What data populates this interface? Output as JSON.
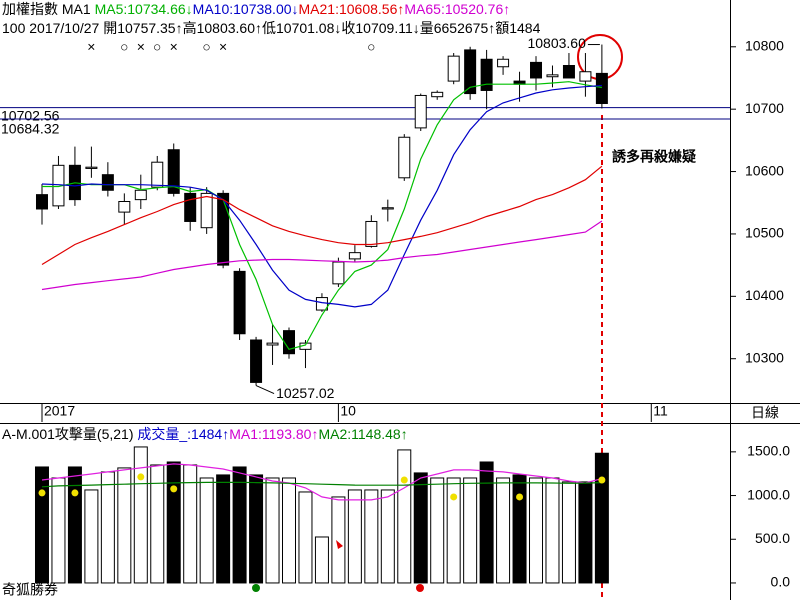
{
  "chart_data": {
    "type": "candlestick",
    "header": [
      [
        {
          "text": "加權指數 MA1 ",
          "color": "#000000"
        },
        {
          "text": "MA5:10734.66↓",
          "color": "#00b000"
        },
        {
          "text": "MA10:10738.00↓",
          "color": "#0000c8"
        },
        {
          "text": "MA21:10608.56↑",
          "color": "#e00000"
        },
        {
          "text": "MA65:10520.76↑",
          "color": "#d000d0"
        }
      ],
      [
        {
          "text": "100 2017/10/27 開10757.35↑高10803.60↑低10701.08↓收10709.11↓量6652675↑額1484",
          "color": "#000000"
        }
      ]
    ],
    "xlim": [
      -2.55,
      41.78
    ],
    "xticks": [
      {
        "value": 0,
        "label": "2017"
      },
      {
        "value": 18,
        "label": "10"
      },
      {
        "value": 37,
        "label": "11"
      }
    ],
    "period_label": "日線",
    "ylim": [
      10229,
      10875
    ],
    "yticks": [
      10300,
      10400,
      10500,
      10600,
      10700,
      10800
    ],
    "open": [
      10563,
      10545,
      10610,
      10605,
      10595,
      10535,
      10555,
      10575,
      10635,
      10565,
      10510,
      10565,
      10440,
      10330,
      10322,
      10345,
      10315,
      10378,
      10420,
      10460,
      10480,
      10540,
      10590,
      10670,
      10720,
      10745,
      10795,
      10780,
      10768,
      10745,
      10775,
      10752,
      10770,
      10745,
      10757.35
    ],
    "high": [
      10580,
      10625,
      10640,
      10640,
      10615,
      10565,
      10595,
      10625,
      10645,
      10575,
      10575,
      10570,
      10445,
      10335,
      10355,
      10350,
      10330,
      10405,
      10462,
      10482,
      10530,
      10555,
      10660,
      10725,
      10730,
      10790,
      10800,
      10795,
      10785,
      10760,
      10785,
      10770,
      10790,
      10790,
      10803.6
    ],
    "low": [
      10515,
      10540,
      10545,
      10590,
      10560,
      10515,
      10540,
      10570,
      10560,
      10505,
      10500,
      10445,
      10330,
      10257.02,
      10290,
      10300,
      10285,
      10375,
      10415,
      10455,
      10478,
      10520,
      10585,
      10665,
      10715,
      10740,
      10715,
      10700,
      10755,
      10712,
      10730,
      10735,
      10755,
      10720,
      10701.08
    ],
    "close": [
      10540,
      10610,
      10555,
      10607,
      10570,
      10552,
      10570,
      10615,
      10565,
      10520,
      10565,
      10450,
      10340,
      10262,
      10325,
      10308,
      10325,
      10398,
      10455,
      10470,
      10520,
      10542,
      10655,
      10722,
      10727,
      10785,
      10725,
      10730,
      10780,
      10740,
      10750,
      10755,
      10750,
      10760,
      10709.11
    ],
    "ma_lines": [
      {
        "color": "#00c000",
        "values": [
          10576,
          10576,
          10582,
          10579,
          10579,
          10579,
          10571,
          10574,
          10576,
          10568,
          10571,
          10555,
          10483,
          10427,
          10355,
          10315,
          10322,
          10370,
          10410,
          10440,
          10450,
          10475,
          10540,
          10620,
          10675,
          10715,
          10735,
          10740,
          10740,
          10740,
          10740,
          10742,
          10744,
          10739,
          10734.66
        ]
      },
      {
        "color": "#0000c8",
        "values": [
          10580,
          10579,
          10577,
          10580,
          10579,
          10579,
          10579,
          10578,
          10577,
          10575,
          10570,
          10555,
          10522,
          10483,
          10442,
          10410,
          10395,
          10390,
          10387,
          10383,
          10387,
          10410,
          10467,
          10522,
          10570,
          10627,
          10667,
          10696,
          10710,
          10718,
          10726,
          10731,
          10734,
          10736,
          10738
        ]
      },
      {
        "color": "#e00000",
        "values": [
          10451,
          10467,
          10483,
          10494,
          10504,
          10515,
          10526,
          10536,
          10547,
          10555,
          10560,
          10555,
          10539,
          10526,
          10513,
          10504,
          10497,
          10491,
          10486,
          10483,
          10483,
          10486,
          10491,
          10496,
          10502,
          10510,
          10518,
          10528,
          10536,
          10544,
          10555,
          10563,
          10574,
          10587,
          10608.56
        ]
      },
      {
        "color": "#d000d0",
        "values": [
          10411,
          10415,
          10419,
          10422,
          10425,
          10428,
          10431,
          10437,
          10443,
          10447,
          10451,
          10454,
          10457,
          10458,
          10459,
          10459,
          10458,
          10457,
          10456,
          10455,
          10456,
          10458,
          10462,
          10465,
          10467,
          10471,
          10475,
          10479,
          10483,
          10487,
          10491,
          10495,
          10499,
          10503,
          10520.76
        ]
      }
    ],
    "hlines": [
      {
        "value": 10702.56,
        "label": "10702.56",
        "color": "#000080"
      },
      {
        "value": 10684.32,
        "label": "10684.32",
        "color": "#000080"
      }
    ],
    "signals": [
      null,
      null,
      null,
      "×",
      null,
      "○",
      "×",
      "○",
      "×",
      null,
      "○",
      "×",
      null,
      null,
      null,
      null,
      null,
      null,
      null,
      null,
      "○",
      null,
      null,
      null,
      null,
      null,
      null,
      null,
      null,
      null,
      null,
      null,
      null,
      null,
      null
    ],
    "signal_color": "#e00000",
    "annotations": [
      {
        "index": 34,
        "value": 10803.6,
        "label": "10803.60"
      },
      {
        "index": 13,
        "value": 10257.02,
        "label": "10257.02"
      }
    ],
    "warning": {
      "text": "誘多再殺嫌疑",
      "color": "#e00000"
    },
    "volume": {
      "header": [
        {
          "text": "A-M.001攻擊量(5,21) ",
          "color": "#000000"
        },
        {
          "text": "成交量_:1484↑",
          "color": "#0000c8"
        },
        {
          "text": "MA1:1193.80↑",
          "color": "#d000d0"
        },
        {
          "text": "MA2:1148.48↑",
          "color": "#008000"
        }
      ],
      "ylim": [
        -195,
        1830
      ],
      "yticks": [
        {
          "value": 0,
          "label": "0.0"
        },
        {
          "value": 500,
          "label": "500.0"
        },
        {
          "value": 1000,
          "label": "1000.0"
        },
        {
          "value": 1500,
          "label": "1500.0"
        }
      ],
      "values": [
        1327,
        1201,
        1327,
        1064,
        1270,
        1316,
        1556,
        1350,
        1384,
        1350,
        1201,
        1236,
        1327,
        1236,
        1201,
        1201,
        1041,
        526,
        984,
        1064,
        1064,
        1064,
        1522,
        1259,
        1201,
        1201,
        1201,
        1384,
        1201,
        1236,
        1201,
        1201,
        1156,
        1156,
        1484
      ],
      "colors": [
        "#000000",
        "#ffffff",
        "#000000",
        "#ffffff",
        "#ffffff",
        "#ffffff",
        "#ffffff",
        "#ffffff",
        "#000000",
        "#ffffff",
        "#ffffff",
        "#000000",
        "#000000",
        "#000000",
        "#ffffff",
        "#ffffff",
        "#ffffff",
        "#ffffff",
        "#ffffff",
        "#ffffff",
        "#ffffff",
        "#ffffff",
        "#ffffff",
        "#000000",
        "#ffffff",
        "#ffffff",
        "#ffffff",
        "#000000",
        "#ffffff",
        "#000000",
        "#ffffff",
        "#ffffff",
        "#ffffff",
        "#000000",
        "#000000"
      ],
      "lines": [
        {
          "color": "#e020e0",
          "values": [
            1178,
            1201,
            1224,
            1247,
            1270,
            1293,
            1316,
            1339,
            1362,
            1350,
            1327,
            1304,
            1259,
            1213,
            1167,
            1144,
            1087,
            984,
            950,
            950,
            950,
            984,
            1087,
            1201,
            1247,
            1293,
            1293,
            1281,
            1270,
            1247,
            1224,
            1201,
            1167,
            1144,
            1193.8
          ]
        },
        {
          "color": "#008000",
          "values": [
            1100,
            1110,
            1115,
            1120,
            1125,
            1130,
            1135,
            1140,
            1145,
            1148,
            1150,
            1150,
            1150,
            1148,
            1145,
            1140,
            1135,
            1130,
            1125,
            1120,
            1118,
            1118,
            1120,
            1125,
            1130,
            1135,
            1140,
            1142,
            1145,
            1145,
            1145,
            1143,
            1140,
            1142,
            1148.48
          ]
        }
      ],
      "dots": {
        "color": "#f0e000",
        "values": [
          1030,
          null,
          1030,
          null,
          null,
          null,
          1213,
          null,
          1076,
          null,
          null,
          null,
          null,
          null,
          null,
          null,
          null,
          null,
          null,
          null,
          null,
          null,
          1178,
          null,
          null,
          984,
          null,
          null,
          null,
          984,
          null,
          null,
          null,
          null,
          1178
        ]
      }
    },
    "brand": "奇狐勝券"
  }
}
